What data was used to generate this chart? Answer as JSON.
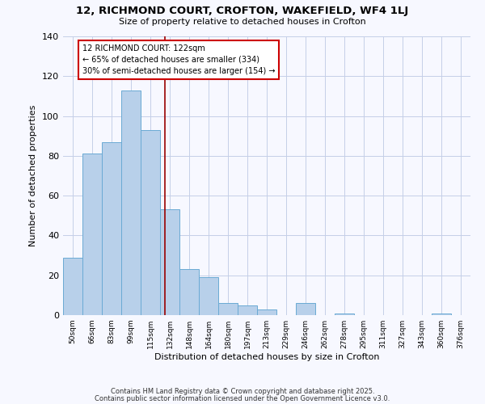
{
  "title": "12, RICHMOND COURT, CROFTON, WAKEFIELD, WF4 1LJ",
  "subtitle": "Size of property relative to detached houses in Crofton",
  "xlabel": "Distribution of detached houses by size in Crofton",
  "ylabel": "Number of detached properties",
  "bar_labels": [
    "50sqm",
    "66sqm",
    "83sqm",
    "99sqm",
    "115sqm",
    "132sqm",
    "148sqm",
    "164sqm",
    "180sqm",
    "197sqm",
    "213sqm",
    "229sqm",
    "246sqm",
    "262sqm",
    "278sqm",
    "295sqm",
    "311sqm",
    "327sqm",
    "343sqm",
    "360sqm",
    "376sqm"
  ],
  "bar_values": [
    29,
    81,
    87,
    113,
    93,
    53,
    23,
    19,
    6,
    5,
    3,
    0,
    6,
    0,
    1,
    0,
    0,
    0,
    0,
    1,
    0
  ],
  "bar_color": "#b8d0ea",
  "bar_edge_color": "#6aaad4",
  "bar_width": 1.0,
  "vline_x": 4.75,
  "vline_color": "#990000",
  "annotation_text": "12 RICHMOND COURT: 122sqm\n← 65% of detached houses are smaller (334)\n30% of semi-detached houses are larger (154) →",
  "annotation_box_edge_color": "#cc0000",
  "annotation_box_face_color": "white",
  "ylim": [
    0,
    140
  ],
  "yticks": [
    0,
    20,
    40,
    60,
    80,
    100,
    120,
    140
  ],
  "footer1": "Contains HM Land Registry data © Crown copyright and database right 2025.",
  "footer2": "Contains public sector information licensed under the Open Government Licence v3.0.",
  "bg_color": "#f7f8ff",
  "grid_color": "#c5cfe8"
}
